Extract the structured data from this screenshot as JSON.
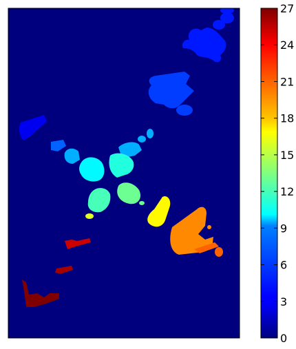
{
  "chart_data": {
    "type": "heatmap",
    "title": "",
    "xlabel": "",
    "ylabel": "",
    "colormap": "jet",
    "background_value": 0,
    "grid": false,
    "colorbar": {
      "placement": "right",
      "range": [
        0,
        27
      ],
      "ticks": [
        0,
        3,
        6,
        9,
        12,
        15,
        18,
        21,
        24,
        27
      ],
      "tick_labels": [
        "0",
        "3",
        "6",
        "9",
        "12",
        "15",
        "18",
        "21",
        "24",
        "27"
      ]
    },
    "regions_label_values": [
      {
        "id": 1,
        "value": 3
      },
      {
        "id": 2,
        "value": 4
      },
      {
        "id": 3,
        "value": 4
      },
      {
        "id": 4,
        "value": 5
      },
      {
        "id": 5,
        "value": 6
      },
      {
        "id": 6,
        "value": 8
      },
      {
        "id": 7,
        "value": 10
      },
      {
        "id": 8,
        "value": 11
      },
      {
        "id": 9,
        "value": 12
      },
      {
        "id": 10,
        "value": 13
      },
      {
        "id": 11,
        "value": 14
      },
      {
        "id": 12,
        "value": 15
      },
      {
        "id": 13,
        "value": 16
      },
      {
        "id": 14,
        "value": 17
      },
      {
        "id": 15,
        "value": 18
      },
      {
        "id": 16,
        "value": 19
      },
      {
        "id": 17,
        "value": 20
      },
      {
        "id": 18,
        "value": 21
      },
      {
        "id": 19,
        "value": 23
      },
      {
        "id": 20,
        "value": 24
      },
      {
        "id": 21,
        "value": 25
      },
      {
        "id": 22,
        "value": 26
      },
      {
        "id": 23,
        "value": 27
      }
    ]
  }
}
